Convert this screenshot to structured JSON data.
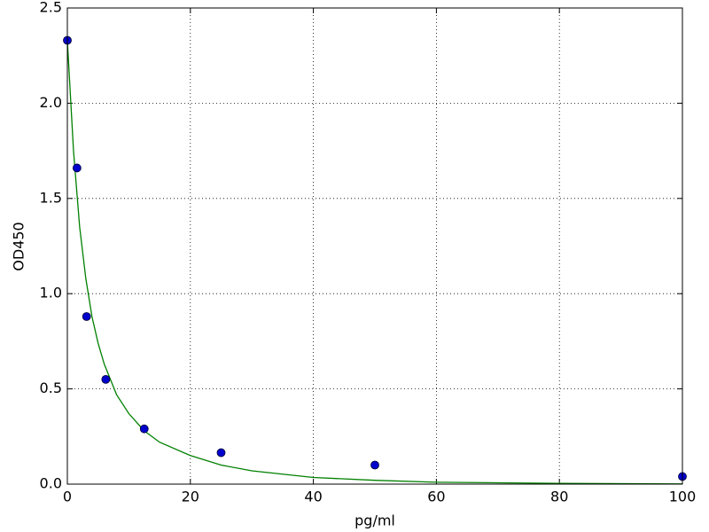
{
  "chart_data": {
    "type": "scatter",
    "xlabel": "pg/ml",
    "ylabel": "OD450",
    "xlim": [
      0,
      100
    ],
    "ylim": [
      0,
      2.5
    ],
    "xticks": [
      0,
      20,
      40,
      60,
      80,
      100
    ],
    "yticks": [
      {
        "value": 0,
        "label": "0.0"
      },
      0.5,
      {
        "value": 1,
        "label": "1.0"
      },
      1.5,
      {
        "value": 2,
        "label": "2.0"
      },
      2.5
    ],
    "grid": true,
    "series": [
      {
        "type": "scatter",
        "color": "#0000cc",
        "x": [
          0,
          1.5625,
          3.125,
          6.25,
          12.5,
          25,
          50,
          100
        ],
        "values": [
          2.33,
          1.66,
          0.88,
          0.55,
          0.29,
          0.165,
          0.1,
          0.04
        ]
      },
      {
        "type": "line",
        "color": "#008000",
        "x": [
          0,
          1,
          2,
          3,
          4,
          5,
          6,
          8,
          10,
          12.5,
          15,
          20,
          25,
          30,
          40,
          50,
          60,
          80,
          100
        ],
        "values": [
          2.33,
          1.75,
          1.35,
          1.08,
          0.88,
          0.74,
          0.63,
          0.47,
          0.37,
          0.28,
          0.22,
          0.15,
          0.1,
          0.07,
          0.035,
          0.02,
          0.01,
          0.004,
          0.001
        ]
      }
    ]
  }
}
